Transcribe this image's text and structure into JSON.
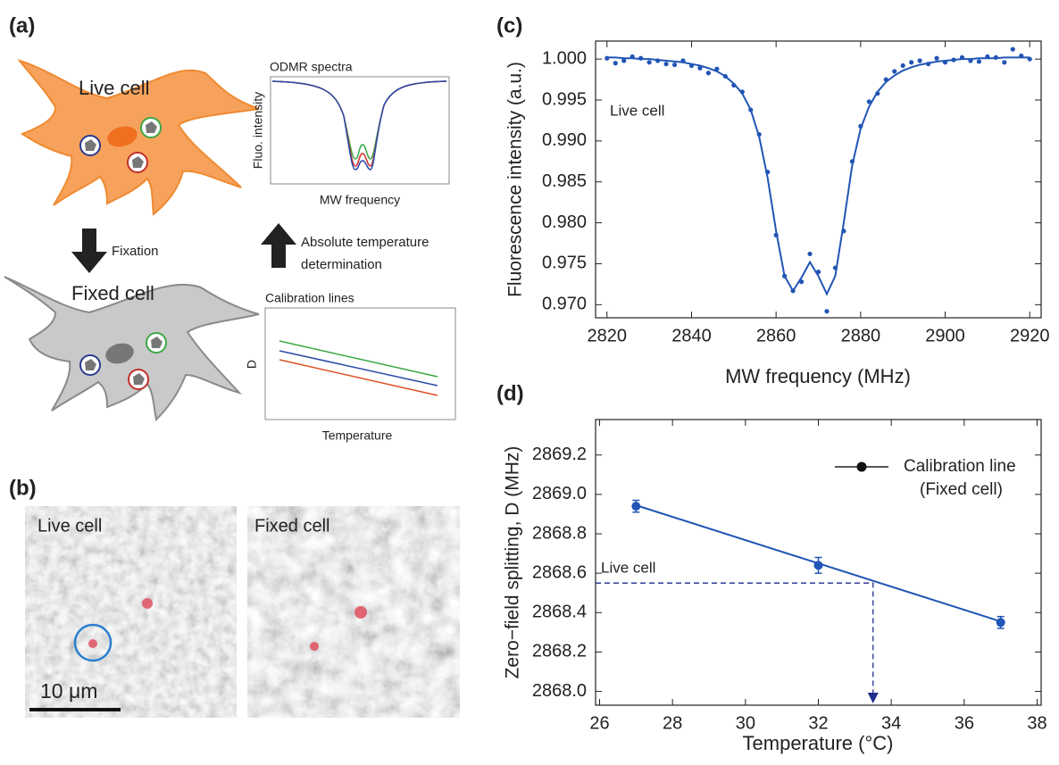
{
  "panel_labels": [
    "(a)",
    "(b)",
    "(c)",
    "(d)"
  ],
  "schematic": {
    "live_cell": "Live cell",
    "fixation": "Fixation",
    "fixed_cell": "Fixed cell",
    "odmr_title": "ODMR spectra",
    "odmr_ylabel": "Fluo. intensity",
    "odmr_xlabel": "MW frequency",
    "arrow_text": [
      "Absolute temperature",
      "determination"
    ],
    "calib_title": "Calibration lines",
    "calib_ylabel": "D",
    "calib_xlabel": "Temperature"
  },
  "micrographs": {
    "live": "Live cell",
    "fixed": "Fixed cell",
    "scale_bar": "10 μm"
  },
  "chart_data": [
    {
      "type": "scatter",
      "x_label": "MW frequency (MHz)",
      "y_label": "Fluorescence intensity (a.u.)",
      "annotations": [
        {
          "text": "Live cell"
        }
      ],
      "x": [
        2820,
        2822,
        2824,
        2826,
        2828,
        2830,
        2832,
        2834,
        2836,
        2838,
        2840,
        2842,
        2844,
        2846,
        2848,
        2850,
        2852,
        2854,
        2856,
        2858,
        2860,
        2862,
        2864,
        2866,
        2868,
        2870,
        2872,
        2874,
        2876,
        2878,
        2880,
        2882,
        2884,
        2886,
        2888,
        2890,
        2892,
        2894,
        2896,
        2898,
        2900,
        2902,
        2904,
        2906,
        2908,
        2910,
        2912,
        2914,
        2916,
        2918,
        2920
      ],
      "series": [
        {
          "mode": "points",
          "color": "#2155b5",
          "values": [
            1.0001,
            0.9995,
            0.9998,
            1.0003,
            1.0001,
            0.9996,
            0.9998,
            0.9994,
            0.9993,
            0.9998,
            0.9992,
            0.9989,
            0.9983,
            0.9988,
            0.9979,
            0.9968,
            0.996,
            0.9938,
            0.9908,
            0.9862,
            0.9785,
            0.9735,
            0.9717,
            0.9728,
            0.9762,
            0.974,
            0.9692,
            0.9745,
            0.979,
            0.9875,
            0.9918,
            0.9948,
            0.9958,
            0.9975,
            0.9985,
            0.9992,
            0.9996,
            0.9998,
            0.9994,
            1.0001,
            0.9996,
            0.9999,
            1.0002,
            0.9998,
            0.9997,
            1.0003,
            1.0002,
            0.9996,
            1.0012,
            1.0004,
            1.0
          ]
        },
        {
          "mode": "line",
          "color": "#2155b5",
          "values": [
            1.0002,
            1.0002,
            1.0001,
            1.0001,
            1.0,
            1.0,
            0.9999,
            0.9998,
            0.9997,
            0.9996,
            0.9994,
            0.9992,
            0.9989,
            0.9985,
            0.9979,
            0.997,
            0.9958,
            0.9938,
            0.9905,
            0.9855,
            0.979,
            0.9735,
            0.9717,
            0.9733,
            0.9752,
            0.9735,
            0.9713,
            0.9735,
            0.98,
            0.987,
            0.9915,
            0.9942,
            0.996,
            0.9972,
            0.998,
            0.9986,
            0.999,
            0.9993,
            0.9995,
            0.9997,
            0.9998,
            0.9999,
            1.0,
            1.0,
            1.0001,
            1.0001,
            1.0001,
            1.0002,
            1.0002,
            1.0002,
            1.0002
          ]
        }
      ],
      "xlim": [
        2817.3,
        2922.7
      ],
      "xticks": [
        2820,
        2840,
        2860,
        2880,
        2900,
        2920
      ],
      "ylim": [
        0.9684,
        1.0022
      ],
      "yticks": [
        {
          "value": 0.97,
          "label": "0.970"
        },
        0.975,
        {
          "value": 0.98,
          "label": "0.980"
        },
        0.985,
        {
          "value": 0.99,
          "label": "0.990"
        },
        0.995,
        {
          "value": 1.0,
          "label": "1.000"
        }
      ]
    },
    {
      "type": "scatter",
      "x_label": "Temperature (°C)",
      "y_label": "Zero−field splitting, D (MHz)",
      "legend_subtitle": "(Fixed cell)",
      "annotations": [
        {
          "text": "Live cell",
          "x": 33.5,
          "y": 2868.55
        }
      ],
      "series": [
        {
          "name": "Calibration line",
          "mode": "points",
          "color": "#2155b5",
          "x": [
            27,
            32,
            37
          ],
          "values": [
            2868.94,
            2868.64,
            2868.35
          ],
          "errors": [
            0.03,
            0.04,
            0.03
          ]
        },
        {
          "mode": "line",
          "color": "#2155b5",
          "x": [
            27,
            37
          ],
          "values": [
            2868.945,
            2868.355
          ]
        }
      ],
      "xlim": [
        25.89,
        38.11
      ],
      "xticks": [
        26,
        28,
        30,
        32,
        34,
        36,
        38
      ],
      "ylim": [
        2867.93,
        2869.38
      ],
      "yticks": [
        {
          "value": 2868.0,
          "label": "2868.0"
        },
        2868.2,
        2868.4,
        2868.6,
        2868.8,
        {
          "value": 2869.0,
          "label": "2869.0"
        },
        2869.2
      ]
    }
  ]
}
